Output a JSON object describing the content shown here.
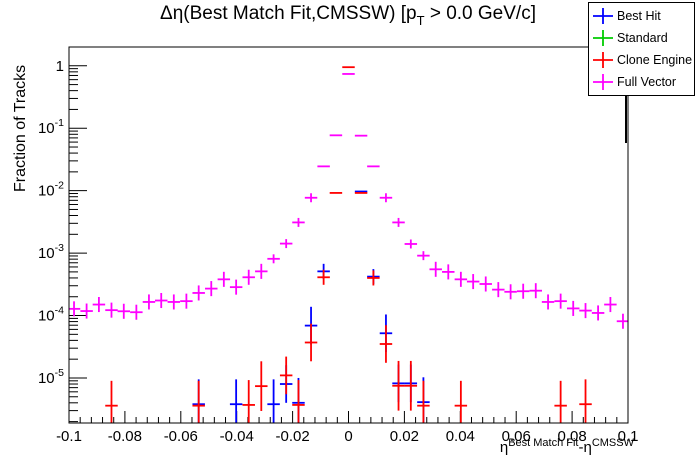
{
  "title": {
    "main": "Δη(Best Match Fit,CMSSW) [p",
    "sub": "T",
    "tail": " > 0.0 GeV/c]"
  },
  "axis_titles": {
    "y": "Fraction of Tracks",
    "x_eta1": "η",
    "x_sup1": "Best Match Fit",
    "x_mid": "-η",
    "x_sup2": "CMSSW"
  },
  "legend": {
    "position": "top-right",
    "entries": [
      {
        "label": "Best Hit",
        "color": "#0000ff"
      },
      {
        "label": "Standard",
        "color": "#00cc00"
      },
      {
        "label": "Clone Engine",
        "color": "#ff0000"
      },
      {
        "label": "Full Vector",
        "color": "#ff00ff"
      }
    ]
  },
  "chart_data": {
    "type": "scatter",
    "title": "Δη(Best Match Fit,CMSSW) [p_T > 0.0 GeV/c]",
    "xlabel": "η^{Best Match Fit}-η^{CMSSW}",
    "ylabel": "Fraction of Tracks",
    "xlim": [
      -0.1,
      0.1
    ],
    "ylim": [
      1.9e-06,
      2.0
    ],
    "ylog": true,
    "grid": false,
    "bin_half_width": 0.00223,
    "xticks": {
      "values": [
        -0.1,
        -0.08,
        -0.06,
        -0.04,
        -0.02,
        0,
        0.02,
        0.04,
        0.06,
        0.08,
        0.1
      ],
      "labels": [
        "-0.1",
        "-0.08",
        "-0.06",
        "-0.04",
        "-0.02",
        "0",
        "0.02",
        "0.04",
        "0.06",
        "0.08",
        "0.1"
      ],
      "minor_step": 0.004
    },
    "yticks": {
      "decades": [
        0,
        -1,
        -2,
        -3,
        -4,
        -5
      ]
    },
    "series": [
      {
        "name": "Best Hit",
        "color": "#0000ff",
        "points": [
          [
            -0.0536,
            3.8e-06
          ],
          [
            -0.0402,
            3.8e-06
          ],
          [
            -0.0268,
            3.8e-06
          ],
          [
            -0.0223,
            8e-06
          ],
          [
            -0.0179,
            4e-06
          ],
          [
            -0.0134,
            6.9e-05
          ],
          [
            -0.0089,
            0.00051
          ],
          [
            0.0045,
            0.0097
          ],
          [
            0.0089,
            0.00042
          ],
          [
            0.0134,
            5.2e-05
          ],
          [
            0.0179,
            8.2e-06
          ],
          [
            0.0223,
            8.2e-06
          ],
          [
            0.0268,
            4.1e-06
          ]
        ]
      },
      {
        "name": "Standard",
        "color": "#00cc00",
        "points": []
      },
      {
        "name": "Clone Engine",
        "color": "#ff0000",
        "points": [
          [
            -0.0848,
            3.6e-06
          ],
          [
            -0.0536,
            3.6e-06
          ],
          [
            -0.0357,
            3.7e-06
          ],
          [
            -0.0312,
            7.4e-06
          ],
          [
            -0.0223,
            1.1e-05
          ],
          [
            -0.0179,
            3.7e-06
          ],
          [
            -0.0134,
            3.7e-05
          ],
          [
            -0.0089,
            0.00041
          ],
          [
            -0.0045,
            0.0092
          ],
          [
            0.0,
            0.95
          ],
          [
            0.0045,
            0.0092
          ],
          [
            0.0089,
            0.0004
          ],
          [
            0.0134,
            3.5e-05
          ],
          [
            0.0179,
            7.5e-06
          ],
          [
            0.0223,
            7.5e-06
          ],
          [
            0.0268,
            3.6e-06
          ],
          [
            0.0402,
            3.6e-06
          ],
          [
            0.0759,
            3.6e-06
          ],
          [
            0.0848,
            3.8e-06
          ]
        ]
      },
      {
        "name": "Full Vector",
        "color": "#ff00ff",
        "points": [
          [
            -0.0982,
            0.000128
          ],
          [
            -0.0937,
            0.000118
          ],
          [
            -0.0893,
            0.00015
          ],
          [
            -0.0848,
            0.000122
          ],
          [
            -0.0804,
            0.000117
          ],
          [
            -0.0759,
            0.000113
          ],
          [
            -0.0714,
            0.000165
          ],
          [
            -0.067,
            0.000174
          ],
          [
            -0.0625,
            0.000165
          ],
          [
            -0.058,
            0.00017
          ],
          [
            -0.0536,
            0.00023
          ],
          [
            -0.0491,
            0.00027
          ],
          [
            -0.0446,
            0.00038
          ],
          [
            -0.0402,
            0.000285
          ],
          [
            -0.0357,
            0.00041
          ],
          [
            -0.0312,
            0.00051
          ],
          [
            -0.0268,
            0.00081
          ],
          [
            -0.0223,
            0.00142
          ],
          [
            -0.0179,
            0.0031
          ],
          [
            -0.0134,
            0.0077
          ],
          [
            -0.0089,
            0.0245
          ],
          [
            -0.0045,
            0.077
          ],
          [
            0.0,
            0.74
          ],
          [
            0.0045,
            0.076
          ],
          [
            0.0089,
            0.0245
          ],
          [
            0.0134,
            0.0077
          ],
          [
            0.0179,
            0.0031
          ],
          [
            0.0223,
            0.0014
          ],
          [
            0.0268,
            0.00091
          ],
          [
            0.0312,
            0.00055
          ],
          [
            0.0357,
            0.0005
          ],
          [
            0.0402,
            0.00038
          ],
          [
            0.0446,
            0.00035
          ],
          [
            0.0491,
            0.00032
          ],
          [
            0.0536,
            0.00026
          ],
          [
            0.058,
            0.00024
          ],
          [
            0.0625,
            0.000245
          ],
          [
            0.067,
            0.00025
          ],
          [
            0.0714,
            0.000165
          ],
          [
            0.0759,
            0.00017
          ],
          [
            0.0804,
            0.00013
          ],
          [
            0.0848,
            0.00012
          ],
          [
            0.0893,
            0.00011
          ],
          [
            0.0937,
            0.00015
          ],
          [
            0.0982,
            8.1e-05
          ]
        ]
      }
    ]
  }
}
